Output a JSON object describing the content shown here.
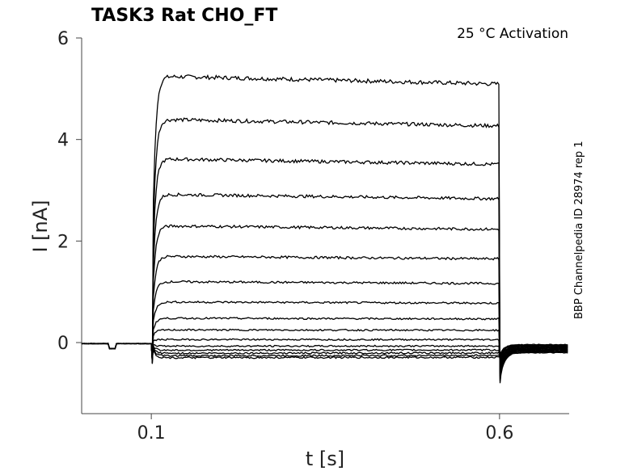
{
  "chart_data": {
    "type": "line",
    "title": "TASK3  Rat  CHO_FT",
    "annotation": "25 °C  Activation",
    "side_label": "BBP Channelpedia ID 28974 rep 1",
    "xlabel": "t [s]",
    "ylabel": "I [nA]",
    "xlim": [
      0.0,
      0.7
    ],
    "ylim": [
      -1.4,
      6.0
    ],
    "x_ticks": [
      0.1,
      0.6
    ],
    "x_tick_labels": [
      "0.1",
      "0.6"
    ],
    "y_ticks": [
      0,
      2,
      4,
      6
    ],
    "y_tick_labels": [
      "0",
      "2",
      "4",
      "6"
    ],
    "grid": false,
    "step_start_s": 0.1,
    "step_end_s": 0.6,
    "series": [
      {
        "steady_nA": 5.25
      },
      {
        "steady_nA": 4.4
      },
      {
        "steady_nA": 3.62
      },
      {
        "steady_nA": 2.92
      },
      {
        "steady_nA": 2.3
      },
      {
        "steady_nA": 1.7
      },
      {
        "steady_nA": 1.2
      },
      {
        "steady_nA": 0.8
      },
      {
        "steady_nA": 0.48
      },
      {
        "steady_nA": 0.25
      },
      {
        "steady_nA": 0.06
      },
      {
        "steady_nA": -0.07
      },
      {
        "steady_nA": -0.15
      },
      {
        "steady_nA": -0.21
      },
      {
        "steady_nA": -0.26
      },
      {
        "steady_nA": -0.3
      }
    ]
  }
}
